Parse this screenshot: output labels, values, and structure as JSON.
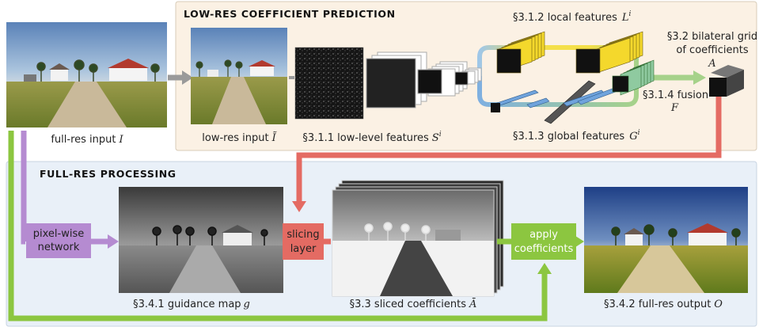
{
  "colors": {
    "lowres_panel": "#fbf1e4",
    "fullres_panel": "#e9f0f8",
    "purple": "#b58bd1",
    "red": "#e46b63",
    "green": "#8cc640",
    "gray_arrow": "#9a9a9a"
  },
  "lowres": {
    "title": "LOW-RES COEFFICIENT PREDICTION",
    "local_features": "§3.1.2 local features",
    "local_sym": "L",
    "local_sup": "i",
    "bilateral_1": "§3.2 bilateral grid",
    "bilateral_2": "of coefficients",
    "bilateral_sym": "A",
    "fusion": "§3.1.4 fusion",
    "fusion_sym": "F",
    "lowlevel": "§3.1.1 low-level features",
    "lowlevel_sym": "S",
    "lowlevel_sup": "i",
    "global": "§3.1.3 global features",
    "global_sym": "G",
    "global_sup": "i",
    "lowres_input": "low-res input",
    "lowres_sym": "Ĩ"
  },
  "fullres_input": {
    "label": "full-res input",
    "sym": "I"
  },
  "fullres": {
    "title": "FULL-RES PROCESSING",
    "pixelwise_1": "pixel-wise",
    "pixelwise_2": "network",
    "slicing_1": "slicing",
    "slicing_2": "layer",
    "apply_1": "apply",
    "apply_2": "coefficients",
    "guidance": "§3.4.1 guidance map",
    "guidance_sym": "g",
    "sliced": "§3.3 sliced coefficients",
    "sliced_sym": "Ā",
    "output": "§3.4.2 full-res output",
    "output_sym": "O"
  }
}
